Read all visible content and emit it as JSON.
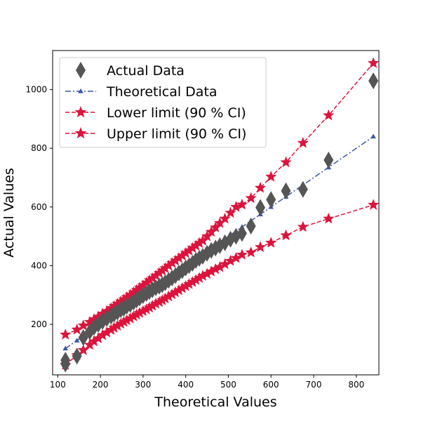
{
  "chart_data": {
    "type": "scatter",
    "title": "",
    "xlabel": "Theoretical Values",
    "ylabel": "Actual Values",
    "xlim": [
      88,
      853
    ],
    "ylim": [
      28,
      1133
    ],
    "xticks": [
      100,
      200,
      300,
      400,
      500,
      600,
      700,
      800
    ],
    "yticks": [
      200,
      400,
      600,
      800,
      1000
    ],
    "grid": false,
    "legend_position": "top-left",
    "colors": {
      "actual": "#555555",
      "theoretical": "#3a55a4",
      "limits": "#dc143c"
    },
    "series": [
      {
        "name": "Actual Data",
        "marker": "diamond",
        "line": "none",
        "x": [
          118,
          118,
          145,
          160,
          175,
          185,
          195,
          205,
          215,
          225,
          232,
          240,
          248,
          255,
          262,
          270,
          278,
          285,
          292,
          300,
          308,
          315,
          322,
          330,
          338,
          345,
          352,
          360,
          368,
          376,
          384,
          392,
          400,
          408,
          416,
          424,
          432,
          440,
          450,
          460,
          470,
          480,
          492,
          505,
          518,
          532,
          553,
          575,
          600,
          635,
          675,
          735,
          840
        ],
        "y": [
          78,
          65,
          92,
          155,
          175,
          190,
          200,
          210,
          220,
          228,
          235,
          242,
          250,
          255,
          262,
          268,
          276,
          283,
          290,
          298,
          305,
          312,
          318,
          325,
          330,
          335,
          342,
          350,
          358,
          366,
          375,
          383,
          392,
          400,
          408,
          418,
          425,
          432,
          442,
          452,
          460,
          468,
          478,
          490,
          500,
          510,
          535,
          598,
          625,
          655,
          660,
          760,
          1030
        ]
      },
      {
        "name": "Theoretical Data",
        "marker": "triangle",
        "line": "dashdot",
        "x": [
          118,
          145,
          160,
          175,
          185,
          195,
          205,
          215,
          225,
          232,
          240,
          248,
          255,
          262,
          270,
          278,
          285,
          292,
          300,
          308,
          315,
          322,
          330,
          338,
          345,
          352,
          360,
          368,
          376,
          384,
          392,
          400,
          408,
          416,
          424,
          432,
          440,
          450,
          460,
          470,
          480,
          492,
          505,
          518,
          532,
          553,
          575,
          600,
          635,
          675,
          735,
          840
        ],
        "y": [
          118,
          145,
          160,
          175,
          185,
          195,
          205,
          215,
          225,
          232,
          240,
          248,
          255,
          262,
          270,
          278,
          285,
          292,
          300,
          308,
          315,
          322,
          330,
          338,
          345,
          352,
          360,
          368,
          376,
          384,
          392,
          400,
          408,
          416,
          424,
          432,
          440,
          450,
          460,
          470,
          480,
          492,
          505,
          518,
          532,
          553,
          575,
          600,
          635,
          675,
          735,
          840
        ]
      },
      {
        "name": "Lower limit (90 % CI)",
        "marker": "star",
        "line": "dashed",
        "x": [
          118,
          145,
          160,
          175,
          185,
          195,
          205,
          215,
          225,
          232,
          240,
          248,
          255,
          262,
          270,
          278,
          285,
          292,
          300,
          308,
          315,
          322,
          330,
          338,
          345,
          352,
          360,
          368,
          376,
          384,
          392,
          400,
          408,
          416,
          424,
          432,
          440,
          450,
          460,
          470,
          480,
          492,
          505,
          518,
          532,
          553,
          575,
          600,
          635,
          675,
          735,
          840
        ],
        "y": [
          62,
          95,
          112,
          130,
          142,
          152,
          163,
          172,
          181,
          188,
          195,
          202,
          208,
          214,
          220,
          227,
          233,
          239,
          245,
          251,
          257,
          263,
          270,
          276,
          282,
          288,
          295,
          302,
          309,
          316,
          323,
          330,
          337,
          344,
          351,
          358,
          365,
          372,
          380,
          388,
          395,
          405,
          416,
          426,
          437,
          445,
          463,
          478,
          503,
          532,
          560,
          607
        ]
      },
      {
        "name": "Upper limit (90 % CI)",
        "marker": "star",
        "line": "dashed",
        "x": [
          118,
          145,
          160,
          175,
          185,
          195,
          205,
          215,
          225,
          232,
          240,
          248,
          255,
          262,
          270,
          278,
          285,
          292,
          300,
          308,
          315,
          322,
          330,
          338,
          345,
          352,
          360,
          368,
          376,
          384,
          392,
          400,
          408,
          416,
          424,
          432,
          440,
          450,
          460,
          470,
          480,
          492,
          505,
          518,
          532,
          553,
          575,
          600,
          635,
          675,
          735,
          840
        ],
        "y": [
          165,
          182,
          196,
          208,
          217,
          226,
          236,
          245,
          255,
          262,
          270,
          278,
          285,
          293,
          301,
          309,
          317,
          325,
          333,
          342,
          350,
          357,
          366,
          375,
          383,
          391,
          400,
          409,
          417,
          426,
          434,
          443,
          451,
          460,
          468,
          477,
          485,
          500,
          515,
          530,
          545,
          560,
          580,
          600,
          608,
          630,
          665,
          703,
          752,
          818,
          912,
          1090
        ]
      }
    ]
  }
}
